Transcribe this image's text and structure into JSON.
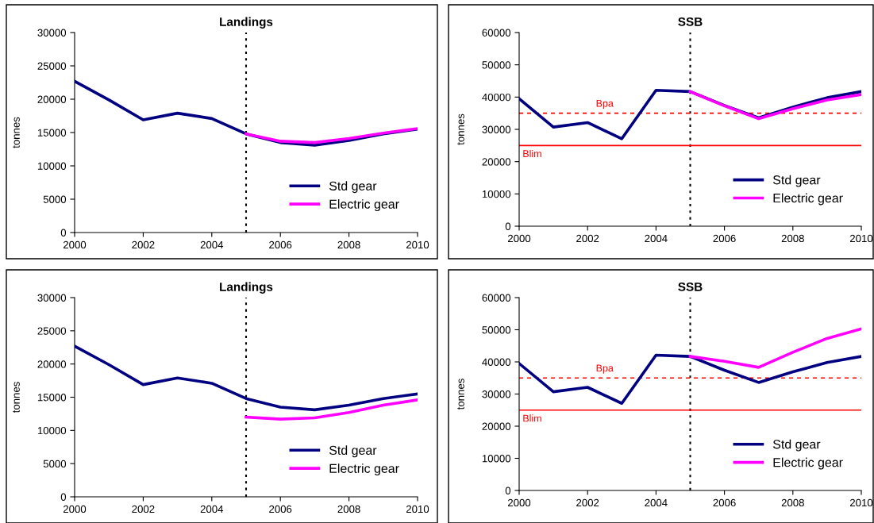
{
  "chart_data": [
    {
      "type": "line",
      "title": "Landings",
      "ylabel": "tonnes",
      "x": [
        2000,
        2001,
        2002,
        2003,
        2004,
        2005,
        2006,
        2007,
        2008,
        2009,
        2010
      ],
      "xlim": [
        2000,
        2010
      ],
      "xticks": [
        2000,
        2002,
        2004,
        2006,
        2008,
        2010
      ],
      "ylim": [
        0,
        30000
      ],
      "yticks": [
        0,
        5000,
        10000,
        15000,
        20000,
        25000,
        30000
      ],
      "grid": false,
      "legend": "bottom right",
      "marker": "none",
      "line_style": "solid",
      "series": [
        {
          "name": "Std gear",
          "color": "#000080",
          "values": [
            22700,
            19900,
            16900,
            17900,
            17100,
            14800,
            13500,
            13100,
            13800,
            14800,
            15500
          ]
        },
        {
          "name": "Electric gear",
          "color": "#ff00ff",
          "values": [
            null,
            null,
            null,
            null,
            null,
            14800,
            13700,
            13500,
            14100,
            14900,
            15600
          ]
        }
      ],
      "ref_lines": [
        {
          "axis": "x",
          "value": 2005,
          "color": "#000000",
          "line_style": "dotted"
        }
      ]
    },
    {
      "type": "line",
      "title": "SSB",
      "ylabel": "tonnes",
      "x": [
        2000,
        2001,
        2002,
        2003,
        2004,
        2005,
        2006,
        2007,
        2008,
        2009,
        2010
      ],
      "xlim": [
        2000,
        2010
      ],
      "xticks": [
        2000,
        2002,
        2004,
        2006,
        2008,
        2010
      ],
      "ylim": [
        0,
        60000
      ],
      "yticks": [
        0,
        10000,
        20000,
        30000,
        40000,
        50000,
        60000
      ],
      "grid": false,
      "legend": "bottom right",
      "marker": "none",
      "line_style": "solid",
      "series": [
        {
          "name": "Std gear",
          "color": "#000080",
          "values": [
            39500,
            30700,
            32100,
            27100,
            42100,
            41700,
            37400,
            33600,
            36900,
            39800,
            41700
          ]
        },
        {
          "name": "Electric gear",
          "color": "#ff00ff",
          "values": [
            null,
            null,
            null,
            null,
            null,
            41700,
            37300,
            33300,
            36400,
            39100,
            40800
          ]
        }
      ],
      "ref_lines": [
        {
          "axis": "x",
          "value": 2005,
          "color": "#000000",
          "line_style": "dotted"
        },
        {
          "axis": "y",
          "value": 35000,
          "label": "Bpa",
          "color": "#ff0000",
          "line_style": "dashed"
        },
        {
          "axis": "y",
          "value": 25000,
          "label": "Blim",
          "color": "#ff0000",
          "line_style": "solid"
        }
      ]
    },
    {
      "type": "line",
      "title": "Landings",
      "ylabel": "tonnes",
      "x": [
        2000,
        2001,
        2002,
        2003,
        2004,
        2005,
        2006,
        2007,
        2008,
        2009,
        2010
      ],
      "xlim": [
        2000,
        2010
      ],
      "xticks": [
        2000,
        2002,
        2004,
        2006,
        2008,
        2010
      ],
      "ylim": [
        0,
        30000
      ],
      "yticks": [
        0,
        5000,
        10000,
        15000,
        20000,
        25000,
        30000
      ],
      "grid": false,
      "legend": "bottom right",
      "marker": "none",
      "line_style": "solid",
      "series": [
        {
          "name": "Std gear",
          "color": "#000080",
          "values": [
            22700,
            19900,
            16900,
            17900,
            17100,
            14800,
            13500,
            13100,
            13800,
            14800,
            15500
          ]
        },
        {
          "name": "Electric gear",
          "color": "#ff00ff",
          "values": [
            null,
            null,
            null,
            null,
            null,
            12000,
            11700,
            11900,
            12700,
            13800,
            14600
          ]
        }
      ],
      "ref_lines": [
        {
          "axis": "x",
          "value": 2005,
          "color": "#000000",
          "line_style": "dotted"
        }
      ]
    },
    {
      "type": "line",
      "title": "SSB",
      "ylabel": "tonnes",
      "x": [
        2000,
        2001,
        2002,
        2003,
        2004,
        2005,
        2006,
        2007,
        2008,
        2009,
        2010
      ],
      "xlim": [
        2000,
        2010
      ],
      "xticks": [
        2000,
        2002,
        2004,
        2006,
        2008,
        2010
      ],
      "ylim": [
        0,
        60000
      ],
      "yticks": [
        0,
        10000,
        20000,
        30000,
        40000,
        50000,
        60000
      ],
      "grid": false,
      "legend": "bottom right",
      "marker": "none",
      "line_style": "solid",
      "series": [
        {
          "name": "Std gear",
          "color": "#000080",
          "values": [
            39500,
            30700,
            32100,
            27100,
            42100,
            41700,
            37400,
            33600,
            36900,
            39800,
            41700
          ]
        },
        {
          "name": "Electric gear",
          "color": "#ff00ff",
          "values": [
            null,
            null,
            null,
            null,
            null,
            41700,
            40200,
            38300,
            43000,
            47300,
            50300
          ]
        }
      ],
      "ref_lines": [
        {
          "axis": "x",
          "value": 2005,
          "color": "#000000",
          "line_style": "dotted"
        },
        {
          "axis": "y",
          "value": 35000,
          "label": "Bpa",
          "color": "#ff0000",
          "line_style": "dashed"
        },
        {
          "axis": "y",
          "value": 25000,
          "label": "Blim",
          "color": "#ff0000",
          "line_style": "solid"
        }
      ]
    }
  ]
}
